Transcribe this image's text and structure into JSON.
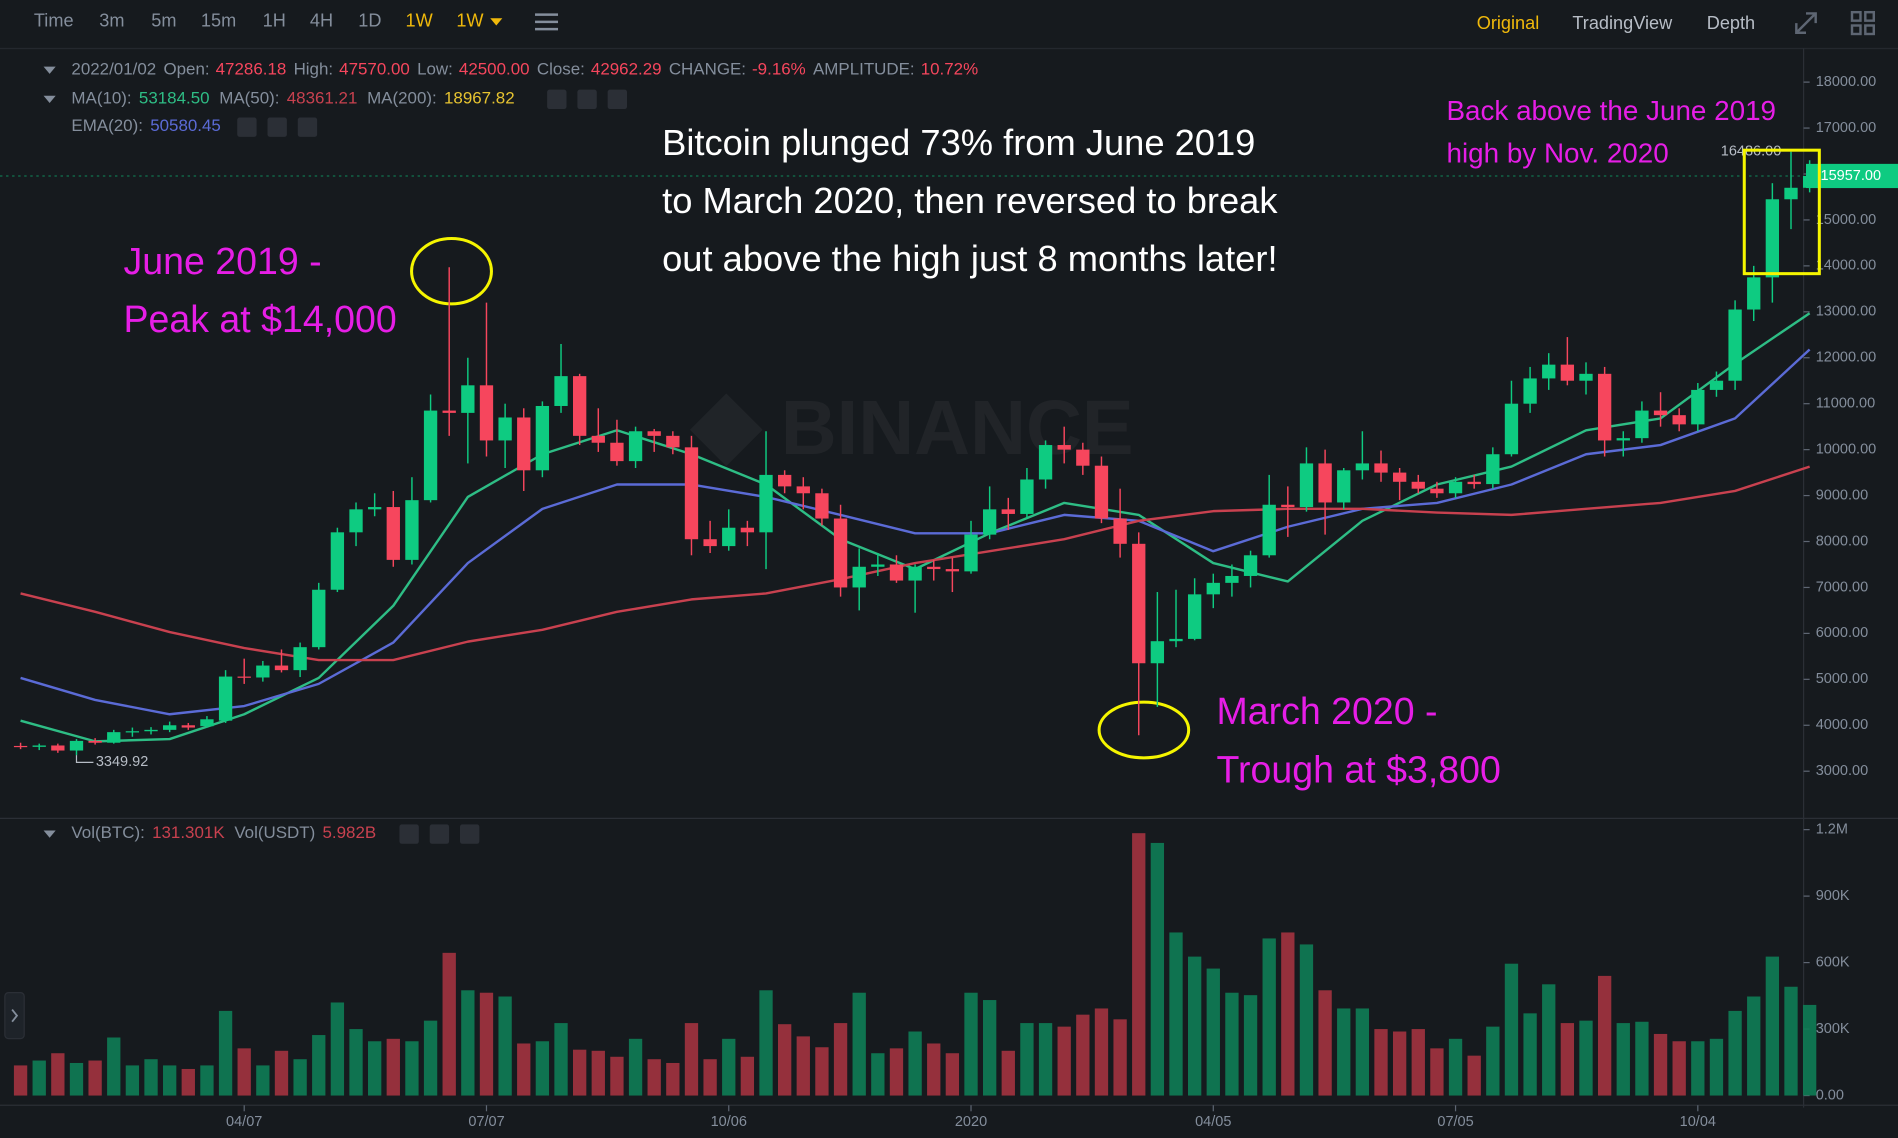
{
  "toolbar": {
    "intervals": [
      "Time",
      "3m",
      "5m",
      "15m",
      "1H",
      "4H",
      "1D",
      "1W"
    ],
    "selected": "1W",
    "dropdown": "1W",
    "views": [
      "Original",
      "TradingView",
      "Depth"
    ],
    "active_view": "Original"
  },
  "info": {
    "date": "2022/01/02",
    "fields": [
      {
        "label": "Open:",
        "value": "47286.18"
      },
      {
        "label": "High:",
        "value": "47570.00"
      },
      {
        "label": "Low:",
        "value": "42500.00"
      },
      {
        "label": "Close:",
        "value": "42962.29"
      },
      {
        "label": "CHANGE:",
        "value": "-9.16%"
      },
      {
        "label": "AMPLITUDE:",
        "value": "10.72%"
      }
    ]
  },
  "ma_legend": [
    {
      "label": "MA(10):",
      "value": "53184.50",
      "color": "#2ebd85"
    },
    {
      "label": "MA(50):",
      "value": "48361.21",
      "color": "#c8414f"
    },
    {
      "label": "MA(200):",
      "value": "18967.82",
      "color": "#e6c330"
    }
  ],
  "ema_legend": [
    {
      "label": "EMA(20):",
      "value": "50580.45",
      "color": "#5b6bd6"
    }
  ],
  "vol_legend": [
    {
      "label": "Vol(BTC):",
      "value": "131.301K"
    },
    {
      "label": "Vol(USDT)",
      "value": "5.982B"
    }
  ],
  "watermark": "BINANCE",
  "chart_data": {
    "type": "candlestick",
    "categories": [
      null,
      null,
      null,
      null,
      null,
      null,
      null,
      null,
      null,
      null,
      null,
      null,
      "04/07",
      null,
      null,
      null,
      null,
      null,
      null,
      null,
      null,
      null,
      null,
      null,
      null,
      "07/07",
      null,
      null,
      null,
      null,
      null,
      null,
      null,
      null,
      null,
      null,
      null,
      null,
      "10/06",
      null,
      null,
      null,
      null,
      null,
      null,
      null,
      null,
      null,
      null,
      null,
      null,
      "2020",
      null,
      null,
      null,
      null,
      null,
      null,
      null,
      null,
      null,
      null,
      null,
      null,
      "04/05",
      null,
      null,
      null,
      null,
      null,
      null,
      null,
      null,
      null,
      null,
      null,
      null,
      "07/05",
      null,
      null,
      null,
      null,
      null,
      null,
      null,
      null,
      null,
      null,
      null,
      null,
      "10/04",
      null,
      null,
      null,
      null,
      null,
      null
    ],
    "open": [
      3550,
      3530,
      3560,
      3450,
      3660,
      3620,
      3850,
      3870,
      3900,
      4000,
      3980,
      4100,
      5060,
      5040,
      5300,
      5200,
      5700,
      6950,
      8200,
      8700,
      8750,
      7600,
      8900,
      10850,
      10800,
      11400,
      10200,
      10700,
      9550,
      10950,
      11600,
      10300,
      10150,
      9750,
      10400,
      10300,
      10050,
      8050,
      7900,
      8300,
      8200,
      9450,
      9200,
      9050,
      8500,
      7000,
      7450,
      7500,
      7150,
      7450,
      7400,
      7350,
      8150,
      8700,
      8600,
      9350,
      10100,
      10000,
      9650,
      8500,
      7950,
      5350,
      5830,
      5880,
      6850,
      7100,
      7250,
      7700,
      8800,
      8750,
      9700,
      8850,
      9550,
      9700,
      9500,
      9300,
      9150,
      9050,
      9300,
      9250,
      9900,
      11000,
      11550,
      11850,
      11500,
      11650,
      10200,
      10250,
      10850,
      10750,
      10550,
      11300,
      11500,
      13050,
      13750,
      15450,
      15700
    ],
    "high": [
      3620,
      3600,
      3600,
      3700,
      3720,
      3900,
      3950,
      3960,
      4080,
      4050,
      4200,
      5200,
      5450,
      5400,
      5650,
      5800,
      7100,
      8300,
      8850,
      9050,
      9100,
      9400,
      11200,
      13970,
      12000,
      13200,
      11000,
      10900,
      11050,
      12300,
      11650,
      10900,
      10650,
      10500,
      10450,
      10400,
      10300,
      8450,
      8700,
      8450,
      10400,
      9550,
      9400,
      9150,
      8800,
      7850,
      7750,
      7700,
      7500,
      7600,
      7650,
      8450,
      9200,
      8950,
      9600,
      10200,
      10500,
      10150,
      9850,
      9150,
      8200,
      6900,
      6950,
      7200,
      7300,
      7500,
      7800,
      9450,
      9200,
      10050,
      10000,
      9600,
      10400,
      9980,
      9600,
      9450,
      9300,
      9400,
      9450,
      10050,
      11500,
      11800,
      12100,
      12450,
      11900,
      11800,
      10400,
      11050,
      11250,
      10900,
      11450,
      11700,
      13250,
      14000,
      15800,
      16486,
      16300
    ],
    "low": [
      3480,
      3460,
      3400,
      3349.92,
      3580,
      3600,
      3750,
      3800,
      3850,
      3900,
      3950,
      4050,
      4900,
      4950,
      5150,
      5050,
      5650,
      6900,
      7900,
      8550,
      7450,
      7500,
      8850,
      10300,
      9700,
      9850,
      9600,
      9100,
      9400,
      10800,
      10100,
      9950,
      9650,
      9600,
      9950,
      9900,
      7700,
      7750,
      7800,
      7900,
      7400,
      9050,
      8700,
      8350,
      6800,
      6500,
      7250,
      7100,
      6450,
      7150,
      6900,
      7300,
      8050,
      8250,
      8500,
      9150,
      9700,
      9450,
      8400,
      7650,
      3782,
      4400,
      5700,
      5850,
      6550,
      6800,
      7000,
      7650,
      8100,
      8650,
      8150,
      8700,
      9350,
      9300,
      8900,
      9050,
      8950,
      8950,
      9150,
      9150,
      9850,
      10800,
      11300,
      11400,
      11200,
      9850,
      9850,
      10150,
      10500,
      10400,
      10400,
      11150,
      11300,
      12800,
      13200,
      14800,
      15600
    ],
    "close": [
      3530,
      3560,
      3450,
      3660,
      3620,
      3850,
      3870,
      3900,
      4000,
      3950,
      4130,
      5060,
      5040,
      5300,
      5200,
      5700,
      6950,
      8200,
      8700,
      8750,
      7600,
      8900,
      10850,
      10800,
      11400,
      10200,
      10700,
      9550,
      10950,
      11600,
      10300,
      10150,
      9750,
      10400,
      10300,
      10050,
      8050,
      7900,
      8300,
      8200,
      9450,
      9200,
      9050,
      8500,
      7000,
      7450,
      7500,
      7150,
      7450,
      7400,
      7350,
      8150,
      8700,
      8600,
      9350,
      10100,
      10000,
      9650,
      8500,
      7950,
      5350,
      5830,
      5880,
      6850,
      7100,
      7250,
      7700,
      8800,
      8750,
      9700,
      8850,
      9550,
      9700,
      9500,
      9300,
      9150,
      9050,
      9300,
      9250,
      9900,
      11000,
      11550,
      11850,
      11500,
      11650,
      10200,
      10250,
      10850,
      10750,
      10550,
      11300,
      11500,
      13050,
      13750,
      15450,
      15700,
      15957
    ],
    "up_color": "#0ecb81",
    "down_color": "#f6465d",
    "ylim": [
      2000,
      18600
    ],
    "yticks": [
      {
        "value": 3000,
        "label": "3000.00"
      },
      {
        "value": 4000,
        "label": "4000.00"
      },
      {
        "value": 5000,
        "label": "5000.00"
      },
      {
        "value": 6000,
        "label": "6000.00"
      },
      {
        "value": 7000,
        "label": "7000.00"
      },
      {
        "value": 8000,
        "label": "8000.00"
      },
      {
        "value": 9000,
        "label": "9000.00"
      },
      {
        "value": 10000,
        "label": "10000.00"
      },
      {
        "value": 11000,
        "label": "11000.00"
      },
      {
        "value": 12000,
        "label": "12000.00"
      },
      {
        "value": 13000,
        "label": "13000.00"
      },
      {
        "value": 14000,
        "label": "14000.00"
      },
      {
        "value": 15000,
        "label": "15000.00"
      },
      {
        "value": 16000,
        "label": "16000.00"
      },
      {
        "value": 17000,
        "label": "17000.00"
      },
      {
        "value": 18000,
        "label": "18000.00"
      }
    ],
    "lines": [
      {
        "color": "#2ebd85",
        "x": [
          0,
          4,
          8,
          12,
          16,
          20,
          24,
          28,
          32,
          36,
          40,
          44,
          48,
          52,
          56,
          60,
          64,
          68,
          72,
          76,
          80,
          84,
          88,
          92,
          96
        ],
        "values": [
          4100,
          3650,
          3700,
          4240,
          5030,
          6600,
          8970,
          9900,
          10420,
          9900,
          9240,
          8050,
          7400,
          8180,
          8840,
          8580,
          7530,
          7130,
          8450,
          9240,
          9630,
          10420,
          10680,
          11870,
          12970
        ]
      },
      {
        "color": "#5b6bd6",
        "x": [
          0,
          4,
          8,
          12,
          16,
          20,
          24,
          28,
          32,
          36,
          40,
          44,
          48,
          52,
          56,
          60,
          64,
          68,
          72,
          76,
          80,
          84,
          88,
          92,
          96
        ],
        "values": [
          5030,
          4550,
          4240,
          4420,
          4900,
          5800,
          7530,
          8710,
          9240,
          9240,
          8970,
          8580,
          8180,
          8180,
          8580,
          8450,
          7790,
          8320,
          8710,
          8840,
          9240,
          9900,
          10100,
          10680,
          12180
        ]
      },
      {
        "color": "#c8414f",
        "x": [
          0,
          4,
          8,
          12,
          16,
          20,
          24,
          28,
          32,
          36,
          40,
          44,
          48,
          52,
          56,
          60,
          64,
          68,
          72,
          76,
          80,
          84,
          88,
          92,
          96
        ],
        "values": [
          6870,
          6470,
          6030,
          5680,
          5420,
          5420,
          5820,
          6080,
          6470,
          6740,
          6870,
          7180,
          7530,
          7790,
          8050,
          8450,
          8660,
          8710,
          8710,
          8630,
          8580,
          8710,
          8840,
          9100,
          9630
        ]
      }
    ],
    "high_value_label": "16486.00",
    "last_price_label": "15957.00",
    "volume": {
      "values": [
        136000,
        158000,
        191000,
        147000,
        158000,
        262000,
        136000,
        164000,
        136000,
        120000,
        136000,
        382000,
        213000,
        136000,
        202000,
        164000,
        273000,
        420000,
        300000,
        245000,
        256000,
        245000,
        338000,
        644000,
        475000,
        464000,
        447000,
        235000,
        245000,
        327000,
        207000,
        202000,
        175000,
        256000,
        164000,
        147000,
        327000,
        164000,
        256000,
        175000,
        475000,
        322000,
        267000,
        218000,
        327000,
        464000,
        191000,
        213000,
        289000,
        235000,
        191000,
        464000,
        431000,
        202000,
        327000,
        327000,
        311000,
        365000,
        393000,
        344000,
        1184000,
        1140000,
        736000,
        627000,
        573000,
        464000,
        453000,
        709000,
        736000,
        682000,
        475000,
        393000,
        393000,
        300000,
        289000,
        300000,
        213000,
        256000,
        180000,
        311000,
        595000,
        371000,
        502000,
        327000,
        338000,
        540000,
        327000,
        333000,
        278000,
        245000,
        245000,
        256000,
        382000,
        447000,
        627000,
        491000,
        409000
      ],
      "ylim": [
        0,
        1240000
      ],
      "yticks": [
        {
          "value": 0,
          "label": "0.00"
        },
        {
          "value": 300000,
          "label": "300K"
        },
        {
          "value": 600000,
          "label": "600K"
        },
        {
          "value": 900000,
          "label": "900K"
        },
        {
          "value": 1200000,
          "label": "1.2M"
        }
      ]
    },
    "annotations": [
      {
        "lines": [
          "June 2019 -",
          "Peak at $14,000"
        ]
      },
      {
        "lines": [
          "March 2020 -",
          "Trough at $3,800"
        ]
      },
      {
        "lines": [
          "Bitcoin plunged 73% from June 2019",
          "to March 2020, then reversed to break",
          "out above the high just 8 months later!"
        ]
      },
      {
        "lines": [
          "Back above the June 2019",
          "high by Nov. 2020"
        ]
      }
    ]
  }
}
